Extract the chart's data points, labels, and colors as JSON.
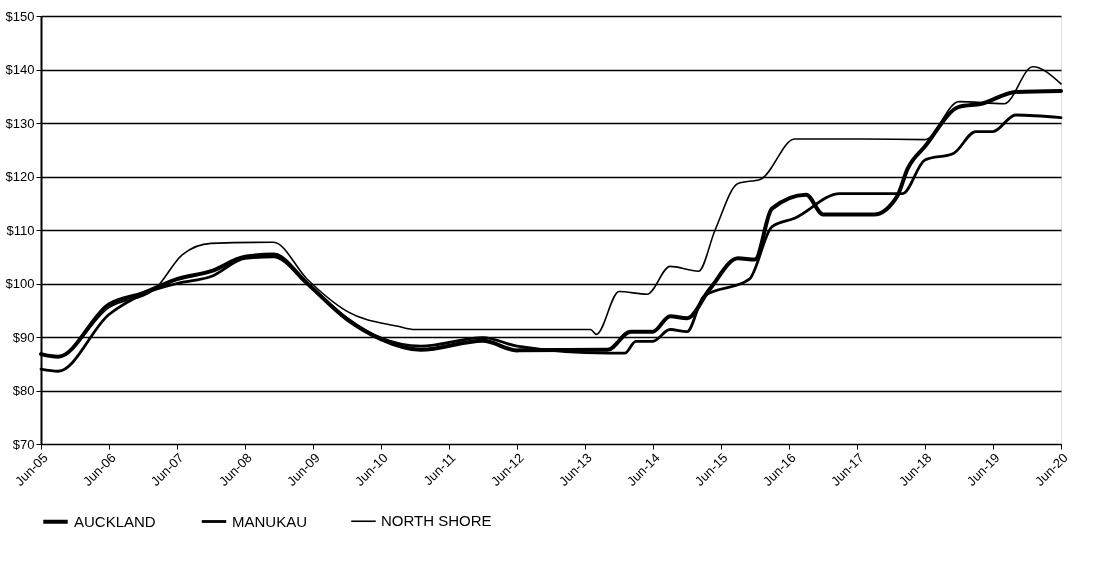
{
  "chart_data": {
    "type": "line",
    "legend": "bottom",
    "grid": "y",
    "line_style": "solid",
    "marker": "none",
    "ylim": [
      70,
      150
    ],
    "yticks": [
      {
        "value": 70,
        "label": "$70"
      },
      {
        "value": 80,
        "label": "$80"
      },
      {
        "value": 90,
        "label": "$90"
      },
      {
        "value": 100,
        "label": "$100"
      },
      {
        "value": 110,
        "label": "$110"
      },
      {
        "value": 120,
        "label": "$120"
      },
      {
        "value": 130,
        "label": "$130"
      },
      {
        "value": 140,
        "label": "$140"
      },
      {
        "value": 150,
        "label": "$150"
      }
    ],
    "xlim": [
      "2005-06",
      "2020-06"
    ],
    "xticks": [
      {
        "value": "2005-06",
        "label": "Jun-05"
      },
      {
        "value": "2006-06",
        "label": "Jun-06"
      },
      {
        "value": "2007-06",
        "label": "Jun-07"
      },
      {
        "value": "2008-06",
        "label": "Jun-08"
      },
      {
        "value": "2009-06",
        "label": "Jun-09"
      },
      {
        "value": "2010-06",
        "label": "Jun-10"
      },
      {
        "value": "2011-06",
        "label": "Jun-11"
      },
      {
        "value": "2012-06",
        "label": "Jun-12"
      },
      {
        "value": "2013-06",
        "label": "Jun-13"
      },
      {
        "value": "2014-06",
        "label": "Jun-14"
      },
      {
        "value": "2015-06",
        "label": "Jun-15"
      },
      {
        "value": "2016-06",
        "label": "Jun-16"
      },
      {
        "value": "2017-06",
        "label": "Jun-17"
      },
      {
        "value": "2018-06",
        "label": "Jun-18"
      },
      {
        "value": "2019-06",
        "label": "Jun-19"
      },
      {
        "value": "2020-06",
        "label": "Jun-20"
      }
    ],
    "series": [
      {
        "name": "AUCKLAND",
        "color": "#000000",
        "x": [
          "2005-06",
          "2005-09",
          "2006-06",
          "2006-12",
          "2007-06",
          "2007-12",
          "2008-06",
          "2008-11",
          "2009-05",
          "2009-12",
          "2010-06",
          "2011-01",
          "2011-12",
          "2012-06",
          "2013-10",
          "2014-02",
          "2014-06",
          "2014-09",
          "2014-12",
          "2015-04",
          "2015-09",
          "2015-12",
          "2016-03",
          "2016-09",
          "2016-12",
          "2017-09",
          "2018-01",
          "2018-03",
          "2018-06",
          "2018-12",
          "2019-04",
          "2019-10",
          "2020-06"
        ],
        "values": [
          86.8,
          86.3,
          96.1,
          98.2,
          100.8,
          102.3,
          105,
          105.4,
          100,
          93.3,
          89.6,
          87.6,
          89.3,
          87.5,
          87.6,
          91,
          91,
          93.9,
          93.5,
          98.9,
          104.7,
          104.5,
          114,
          116.6,
          112.9,
          112.9,
          116.2,
          121.5,
          125.6,
          133,
          133.6,
          135.8,
          136
        ]
      },
      {
        "name": "MANUKAU",
        "color": "#000000",
        "x": [
          "2005-06",
          "2005-09",
          "2006-06",
          "2006-12",
          "2007-06",
          "2007-12",
          "2008-06",
          "2008-11",
          "2009-05",
          "2009-12",
          "2010-06",
          "2011-01",
          "2011-12",
          "2012-06",
          "2013-10",
          "2014-01",
          "2014-03",
          "2014-06",
          "2014-09",
          "2014-12",
          "2015-03",
          "2015-11",
          "2016-03",
          "2016-07",
          "2017-03",
          "2018-02",
          "2018-06",
          "2018-11",
          "2019-03",
          "2019-06",
          "2019-10",
          "2020-06"
        ],
        "values": [
          84,
          83.6,
          94.2,
          98,
          100,
          101.3,
          104.7,
          105,
          100,
          93.5,
          89.8,
          88.3,
          89.9,
          88.3,
          87,
          87,
          89.2,
          89.2,
          91.4,
          91,
          97.6,
          100.8,
          110.6,
          112.2,
          116.8,
          116.8,
          123.1,
          124.3,
          128.4,
          128.4,
          131.5,
          131
        ]
      },
      {
        "name": "NORTH SHORE",
        "color": "#000000",
        "x": [
          "2005-06",
          "2005-09",
          "2006-06",
          "2007-02",
          "2007-07",
          "2007-12",
          "2008-11",
          "2009-05",
          "2009-12",
          "2010-09",
          "2010-12",
          "2013-07",
          "2013-08",
          "2013-12",
          "2014-05",
          "2014-09",
          "2015-02",
          "2015-05",
          "2015-09",
          "2016-01",
          "2016-07",
          "2017-07",
          "2018-06",
          "2018-12",
          "2019-08",
          "2020-01",
          "2020-06"
        ],
        "values": [
          86.8,
          86.5,
          95.5,
          98.9,
          105.4,
          107.5,
          107.7,
          100.8,
          94.8,
          92,
          91.4,
          91.4,
          90.5,
          98.5,
          98,
          103.2,
          102.3,
          110,
          118.7,
          119.5,
          127,
          127,
          126.9,
          134,
          133.6,
          140.5,
          137.3
        ]
      }
    ]
  }
}
